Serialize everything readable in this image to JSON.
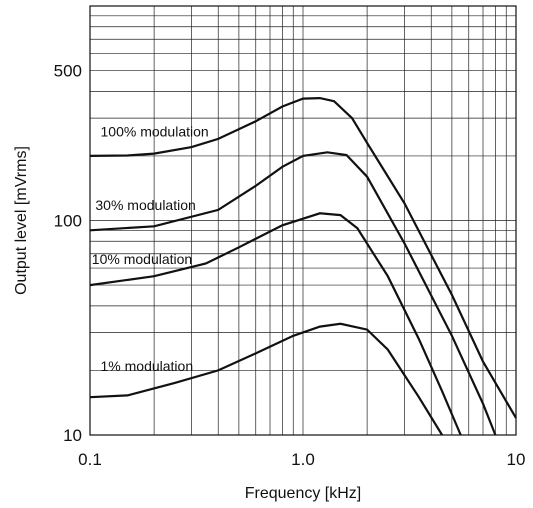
{
  "chart_data": {
    "type": "line",
    "xlabel": "Frequency [kHz]",
    "ylabel": "Output level [mVrms]",
    "x_scale": "log",
    "y_scale": "log",
    "xlim": [
      0.1,
      10
    ],
    "ylim": [
      10,
      1000
    ],
    "x_tick_labels": [
      "0.1",
      "1.0",
      "10"
    ],
    "x_tick_values": [
      0.1,
      1.0,
      10
    ],
    "y_tick_labels": [
      "10",
      "100",
      "500"
    ],
    "y_tick_values": [
      10,
      100,
      500
    ],
    "grid": true,
    "series": [
      {
        "name": "100% modulation",
        "points": [
          [
            0.1,
            200
          ],
          [
            0.15,
            201
          ],
          [
            0.2,
            205
          ],
          [
            0.3,
            220
          ],
          [
            0.4,
            240
          ],
          [
            0.6,
            290
          ],
          [
            0.8,
            340
          ],
          [
            1.0,
            370
          ],
          [
            1.2,
            372
          ],
          [
            1.4,
            360
          ],
          [
            1.7,
            300
          ],
          [
            2.0,
            230
          ],
          [
            3.0,
            120
          ],
          [
            5.0,
            45
          ],
          [
            7.0,
            22
          ],
          [
            10.0,
            12
          ]
        ]
      },
      {
        "name": "30% modulation",
        "points": [
          [
            0.1,
            90
          ],
          [
            0.2,
            94
          ],
          [
            0.4,
            112
          ],
          [
            0.6,
            145
          ],
          [
            0.8,
            178
          ],
          [
            1.0,
            200
          ],
          [
            1.3,
            208
          ],
          [
            1.6,
            202
          ],
          [
            2.0,
            160
          ],
          [
            3.0,
            78
          ],
          [
            5.0,
            29
          ],
          [
            7.0,
            14
          ],
          [
            8.0,
            10
          ]
        ]
      },
      {
        "name": "10% modulation",
        "points": [
          [
            0.1,
            50
          ],
          [
            0.2,
            55
          ],
          [
            0.35,
            63
          ],
          [
            0.5,
            75
          ],
          [
            0.8,
            95
          ],
          [
            1.2,
            108
          ],
          [
            1.5,
            106
          ],
          [
            1.8,
            92
          ],
          [
            2.5,
            55
          ],
          [
            3.5,
            28
          ],
          [
            4.5,
            16
          ],
          [
            5.5,
            10
          ]
        ]
      },
      {
        "name": "1% modulation",
        "points": [
          [
            0.1,
            15
          ],
          [
            0.15,
            15.3
          ],
          [
            0.25,
            17.5
          ],
          [
            0.4,
            20
          ],
          [
            0.6,
            24
          ],
          [
            0.9,
            29
          ],
          [
            1.2,
            32
          ],
          [
            1.5,
            33
          ],
          [
            2.0,
            31
          ],
          [
            2.5,
            25
          ],
          [
            3.5,
            15
          ],
          [
            4.5,
            10
          ]
        ]
      }
    ]
  }
}
